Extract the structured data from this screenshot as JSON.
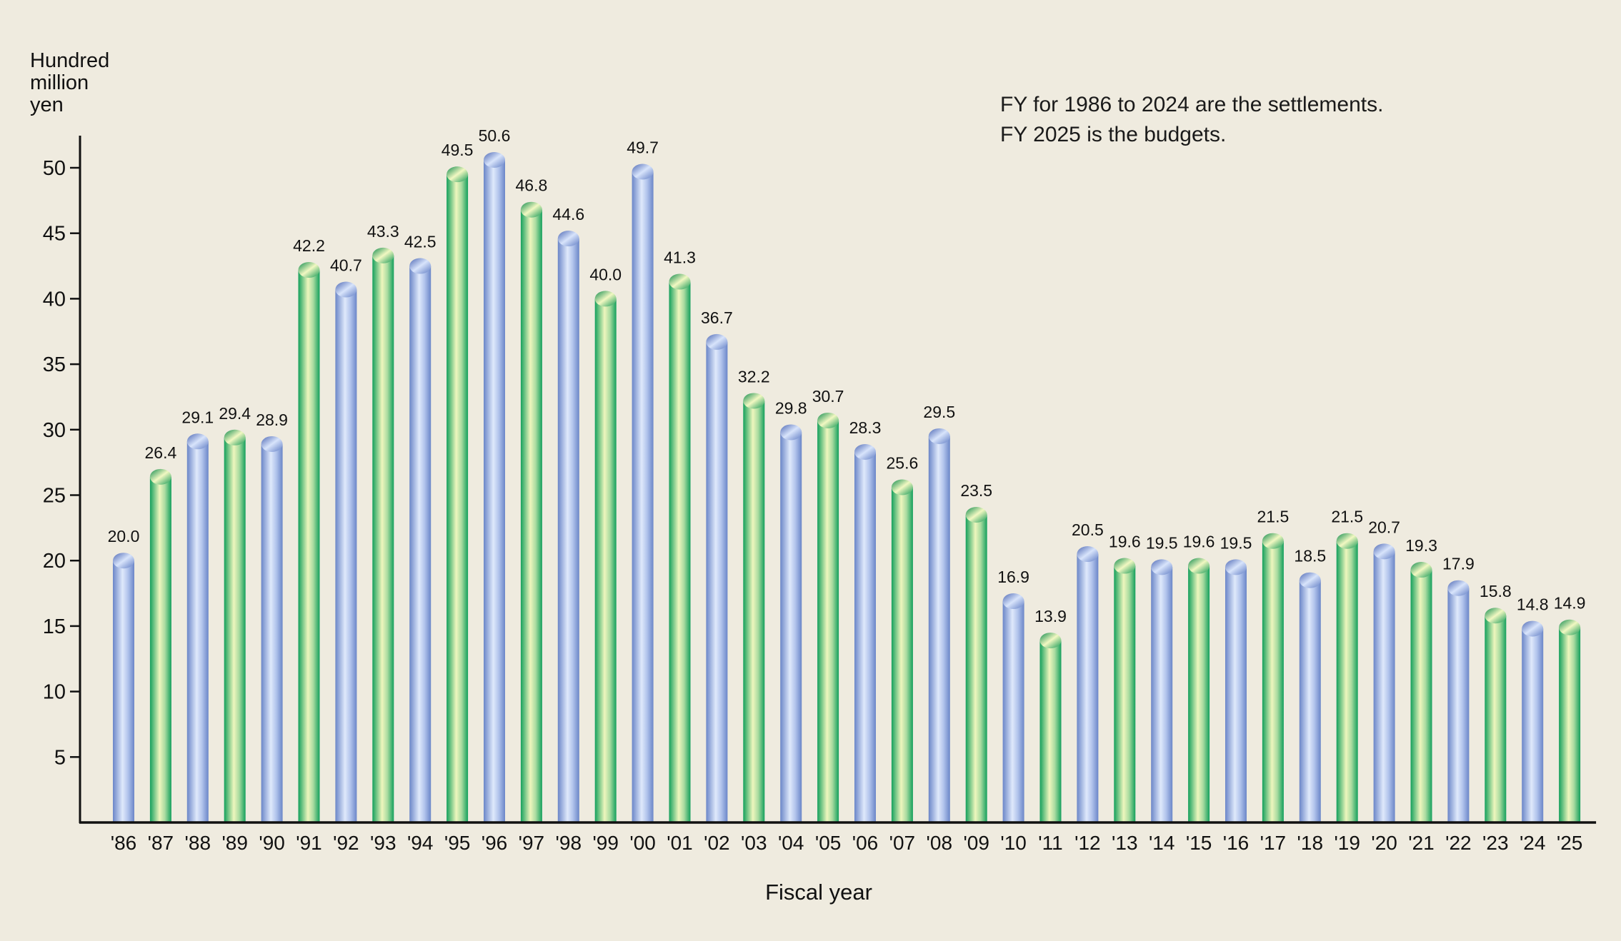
{
  "chart_data": {
    "type": "bar",
    "ylabel_lines": [
      "Hundred",
      "million",
      "yen"
    ],
    "xlabel": "Fiscal year",
    "notes": [
      "FY for 1986 to 2024 are the settlements.",
      "FY 2025 is the budgets."
    ],
    "ylim": [
      0,
      52
    ],
    "yticks": [
      5,
      10,
      15,
      20,
      25,
      30,
      35,
      40,
      45,
      50
    ],
    "grid": false,
    "categories": [
      "'86",
      "'87",
      "'88",
      "'89",
      "'90",
      "'91",
      "'92",
      "'93",
      "'94",
      "'95",
      "'96",
      "'97",
      "'98",
      "'99",
      "'00",
      "'01",
      "'02",
      "'03",
      "'04",
      "'05",
      "'06",
      "'07",
      "'08",
      "'09",
      "'10",
      "'11",
      "'12",
      "'13",
      "'14",
      "'15",
      "'16",
      "'17",
      "'18",
      "'19",
      "'20",
      "'21",
      "'22",
      "'23",
      "'24",
      "'25"
    ],
    "values": [
      20.0,
      26.4,
      29.1,
      29.4,
      28.9,
      42.2,
      40.7,
      43.3,
      42.5,
      49.5,
      50.6,
      46.8,
      44.6,
      40.0,
      49.7,
      41.3,
      36.7,
      32.2,
      29.8,
      30.7,
      28.3,
      25.6,
      29.5,
      23.5,
      16.9,
      13.9,
      20.5,
      19.6,
      19.5,
      19.6,
      19.5,
      21.5,
      18.5,
      21.5,
      20.7,
      19.3,
      17.9,
      15.8,
      14.8,
      14.9
    ],
    "value_labels": [
      "20.0",
      "26.4",
      "29.1",
      "29.4",
      "28.9",
      "42.2",
      "40.7",
      "43.3",
      "42.5",
      "49.5",
      "50.6",
      "46.8",
      "44.6",
      "40.0",
      "49.7",
      "41.3",
      "36.7",
      "32.2",
      "29.8",
      "30.7",
      "28.3",
      "25.6",
      "29.5",
      "23.5",
      "16.9",
      "13.9",
      "20.5",
      "19.6",
      "19.5",
      "19.6",
      "19.5",
      "21.5",
      "18.5",
      "21.5",
      "20.7",
      "19.3",
      "17.9",
      "15.8",
      "14.8",
      "14.9"
    ],
    "bar_colors": [
      "blue",
      "green",
      "blue",
      "green",
      "blue",
      "green",
      "blue",
      "green",
      "blue",
      "green",
      "blue",
      "green",
      "blue",
      "green",
      "blue",
      "green",
      "blue",
      "green",
      "blue",
      "green",
      "blue",
      "green",
      "blue",
      "green",
      "blue",
      "green",
      "blue",
      "green",
      "blue",
      "green",
      "blue",
      "green",
      "blue",
      "green",
      "blue",
      "green",
      "blue",
      "green",
      "blue",
      "green"
    ],
    "colors": {
      "blue_dark": "#6b86c8",
      "blue_light": "#dfe9fb",
      "green_dark": "#14a05c",
      "green_light": "#eef6bd",
      "axis": "#111111",
      "background": "#efebdf"
    }
  }
}
